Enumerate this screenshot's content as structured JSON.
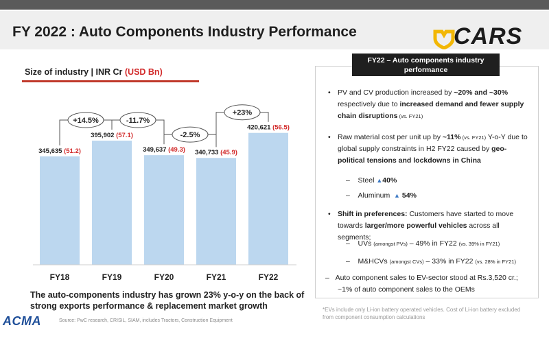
{
  "title": "FY 2022 : Auto Components Industry Performance",
  "brand": "CARS",
  "size_label": {
    "prefix": "Size of industry | INR Cr ",
    "usd": "(USD Bn)"
  },
  "chart_data": {
    "type": "bar",
    "categories": [
      "FY18",
      "FY19",
      "FY20",
      "FY21",
      "FY22"
    ],
    "values": [
      345635,
      395902,
      349637,
      340733,
      420621
    ],
    "labels_inr": [
      "345,635",
      "395,902",
      "349,637",
      "340,733",
      "420,621"
    ],
    "labels_usd": [
      "(51.2)",
      "(57.1)",
      "(49.3)",
      "(45.9)",
      "(56.5)"
    ],
    "growth": [
      "+14.5%",
      "-11.7%",
      "-2.5%",
      "+23%"
    ],
    "ylim": [
      0,
      560000
    ],
    "bar_color": "#bcd7ef",
    "usd_color": "#d22b2b",
    "grid": false
  },
  "bottom_note": "The auto-components industry has grown 23% y-o-y on the back of strong exports performance & replacement market growth",
  "acma": "ACMA",
  "source": "Source: PwC research, CRISIL, SIAM, includes Tractors, Construction Equipment",
  "panel": {
    "head_line1": "FY22 – Auto components industry",
    "head_line2": "performance",
    "b1_pre": "PV and CV production increased by ",
    "b1_bold1": "~20% and ~30%",
    "b1_mid": " respectively due to ",
    "b1_bold2": "increased demand and fewer supply chain disruptions",
    "b1_small": " (vs. FY21)",
    "b2_pre": "Raw material cost per unit up by ",
    "b2_bold1": "~11%",
    "b2_small": " (vs. FY21)",
    "b2_mid": " Y-o-Y due to global supply constraints in H2 FY22 caused by ",
    "b2_bold2": "geo-political tensions and lockdowns in China",
    "steel_label": "Steel",
    "steel_val": "40%",
    "alu_label": "Aluminum",
    "alu_val": "54%",
    "b3_bold": "Shift in preferences:",
    "b3_mid": " Customers have started to move towards ",
    "b3_bold2": "larger/more powerful vehicles",
    "b3_end": " across all segments;",
    "uv_pre": "UVs ",
    "uv_small": "(amongst PVs)",
    "uv_mid": " – 49% in FY22 ",
    "uv_small2": "(vs. 39% in FY21)",
    "mhcv_pre": "M&HCVs ",
    "mhcv_small": "(amongst CVs)",
    "mhcv_mid": " – 33% in FY22 ",
    "mhcv_small2": "(vs. 28% in FY21)",
    "b4_line1": "Auto component sales to EV-sector stood at Rs.3,520 cr.;",
    "b4_line2": "~1% of auto component sales to the OEMs"
  },
  "footnote": "*EVs include only Li-ion battery operated vehicles. Cost of Li-ion battery excluded from component consumption calculations"
}
